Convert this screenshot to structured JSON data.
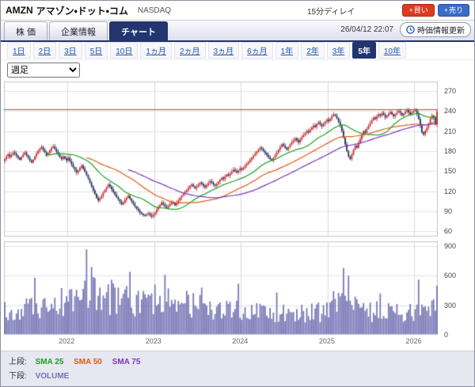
{
  "header": {
    "symbol": "AMZN",
    "name": "アマゾン・ドット・コム",
    "exchange": "NASDAQ",
    "delay_note": "15分ディレイ",
    "order_button_prefix": "+",
    "buy_label": "買い",
    "sell_label": "売り"
  },
  "tabs": [
    {
      "key": "stock-price",
      "label": "株 価",
      "active": false
    },
    {
      "key": "company-info",
      "label": "企業情報",
      "active": false
    },
    {
      "key": "chart",
      "label": "チャート",
      "active": true
    }
  ],
  "toolbar": {
    "timestamp": "26/04/12 22:07",
    "refresh_label": "時価情報更新"
  },
  "periods": [
    {
      "key": "1d",
      "label": "1日",
      "active": false
    },
    {
      "key": "2d",
      "label": "2日",
      "active": false
    },
    {
      "key": "3d",
      "label": "3日",
      "active": false
    },
    {
      "key": "5d",
      "label": "5日",
      "active": false
    },
    {
      "key": "10d",
      "label": "10日",
      "active": false
    },
    {
      "key": "1mo",
      "label": "1ヵ月",
      "active": false
    },
    {
      "key": "2mo",
      "label": "2ヵ月",
      "active": false
    },
    {
      "key": "3mo",
      "label": "3ヵ月",
      "active": false
    },
    {
      "key": "6mo",
      "label": "6ヵ月",
      "active": false
    },
    {
      "key": "1y",
      "label": "1年",
      "active": false
    },
    {
      "key": "2y",
      "label": "2年",
      "active": false
    },
    {
      "key": "3y",
      "label": "3年",
      "active": false
    },
    {
      "key": "5y",
      "label": "5年",
      "active": true
    },
    {
      "key": "10y",
      "label": "10年",
      "active": false
    }
  ],
  "interval_select": {
    "value": "週足"
  },
  "legend": {
    "upper_label": "上段:",
    "sma25": "SMA 25",
    "sma50": "SMA 50",
    "sma75": "SMA 75",
    "lower_label": "下段:",
    "volume": "VOLUME"
  },
  "colors": {
    "accent_navy": "#22356e",
    "buy_button": "#dd3a22",
    "sell_button": "#3a6cc8",
    "candle_up": "#c82a2a",
    "candle_down": "#1c2a5a",
    "sma25": "#1f9e1f",
    "sma50": "#e05a10",
    "sma75": "#7a35bb",
    "volume_bar": "#7272b4",
    "reference_line": "#e03a3a",
    "grid": "#e2e2ea",
    "grid_vertical": "#d8d8e2",
    "plot_border": "#c8c8d2"
  },
  "chart_data": {
    "type": "candlestick+volume",
    "title": "AMZN アマゾン・ドット・コム 5年 週足",
    "y_ticks_price": [
      270,
      240,
      210,
      180,
      150,
      120,
      90,
      60
    ],
    "y_ticks_volume": [
      900,
      600,
      300,
      0
    ],
    "x_year_labels": [
      "2022",
      "2023",
      "2024",
      "2025",
      "2026"
    ],
    "x_year_week_index": [
      38,
      90,
      142,
      194,
      246
    ],
    "price_range": [
      52,
      284
    ],
    "volume_range": [
      0,
      950
    ],
    "reference_price": 242,
    "sma_periods": [
      25,
      50,
      75
    ],
    "weekly_closes": [
      168,
      172,
      175,
      171,
      174,
      178,
      176,
      173,
      170,
      167,
      171,
      175,
      178,
      174,
      170,
      166,
      163,
      167,
      172,
      176,
      180,
      183,
      186,
      182,
      178,
      174,
      177,
      181,
      185,
      187,
      183,
      179,
      175,
      171,
      168,
      172,
      169,
      166,
      170,
      165,
      160,
      156,
      152,
      148,
      151,
      155,
      158,
      154,
      149,
      144,
      139,
      133,
      127,
      121,
      116,
      110,
      106,
      109,
      113,
      118,
      122,
      126,
      130,
      127,
      123,
      119,
      115,
      111,
      108,
      104,
      100,
      103,
      107,
      110,
      113,
      109,
      105,
      101,
      97,
      94,
      91,
      88,
      86,
      84,
      83,
      85,
      87,
      84,
      82,
      85,
      88,
      92,
      96,
      99,
      103,
      100,
      97,
      95,
      98,
      101,
      104,
      102,
      99,
      103,
      106,
      110,
      113,
      116,
      119,
      122,
      125,
      128,
      130,
      127,
      124,
      127,
      130,
      133,
      131,
      128,
      126,
      129,
      132,
      135,
      133,
      130,
      128,
      131,
      134,
      137,
      140,
      138,
      142,
      145,
      143,
      146,
      149,
      152,
      150,
      148,
      151,
      154,
      152,
      155,
      158,
      161,
      164,
      167,
      170,
      173,
      176,
      179,
      182,
      185,
      183,
      180,
      177,
      174,
      171,
      168,
      166,
      170,
      174,
      178,
      182,
      186,
      190,
      188,
      185,
      182,
      186,
      190,
      193,
      196,
      199,
      196,
      193,
      197,
      201,
      204,
      207,
      210,
      208,
      212,
      215,
      218,
      216,
      220,
      223,
      220,
      217,
      221,
      224,
      227,
      225,
      228,
      232,
      235,
      233,
      229,
      224,
      218,
      210,
      200,
      190,
      180,
      172,
      168,
      175,
      182,
      188,
      185,
      192,
      198,
      204,
      210,
      207,
      213,
      218,
      222,
      226,
      230,
      228,
      232,
      235,
      233,
      237,
      234,
      230,
      233,
      236,
      238,
      235,
      232,
      235,
      238,
      240,
      237,
      233,
      236,
      239,
      241,
      238,
      235,
      238,
      240,
      242,
      236,
      228,
      218,
      208,
      205,
      210,
      215,
      221,
      228,
      233,
      230,
      220,
      239
    ],
    "volume_anchor_step": 10,
    "volume_anchors_step10": [
      260,
      300,
      280,
      340,
      420,
      480,
      400,
      380,
      360,
      420,
      380,
      330,
      300,
      280,
      260,
      240,
      260,
      240,
      230,
      250,
      380,
      300,
      260,
      240,
      230,
      260,
      280
    ],
    "volume_spikes": {
      "18": 580,
      "49": 870,
      "52": 690,
      "64": 560,
      "75": 640,
      "96": 610,
      "118": 480,
      "140": 520,
      "163": 430,
      "203": 680,
      "206": 600,
      "225": 420,
      "248": 560,
      "259": 500
    }
  }
}
